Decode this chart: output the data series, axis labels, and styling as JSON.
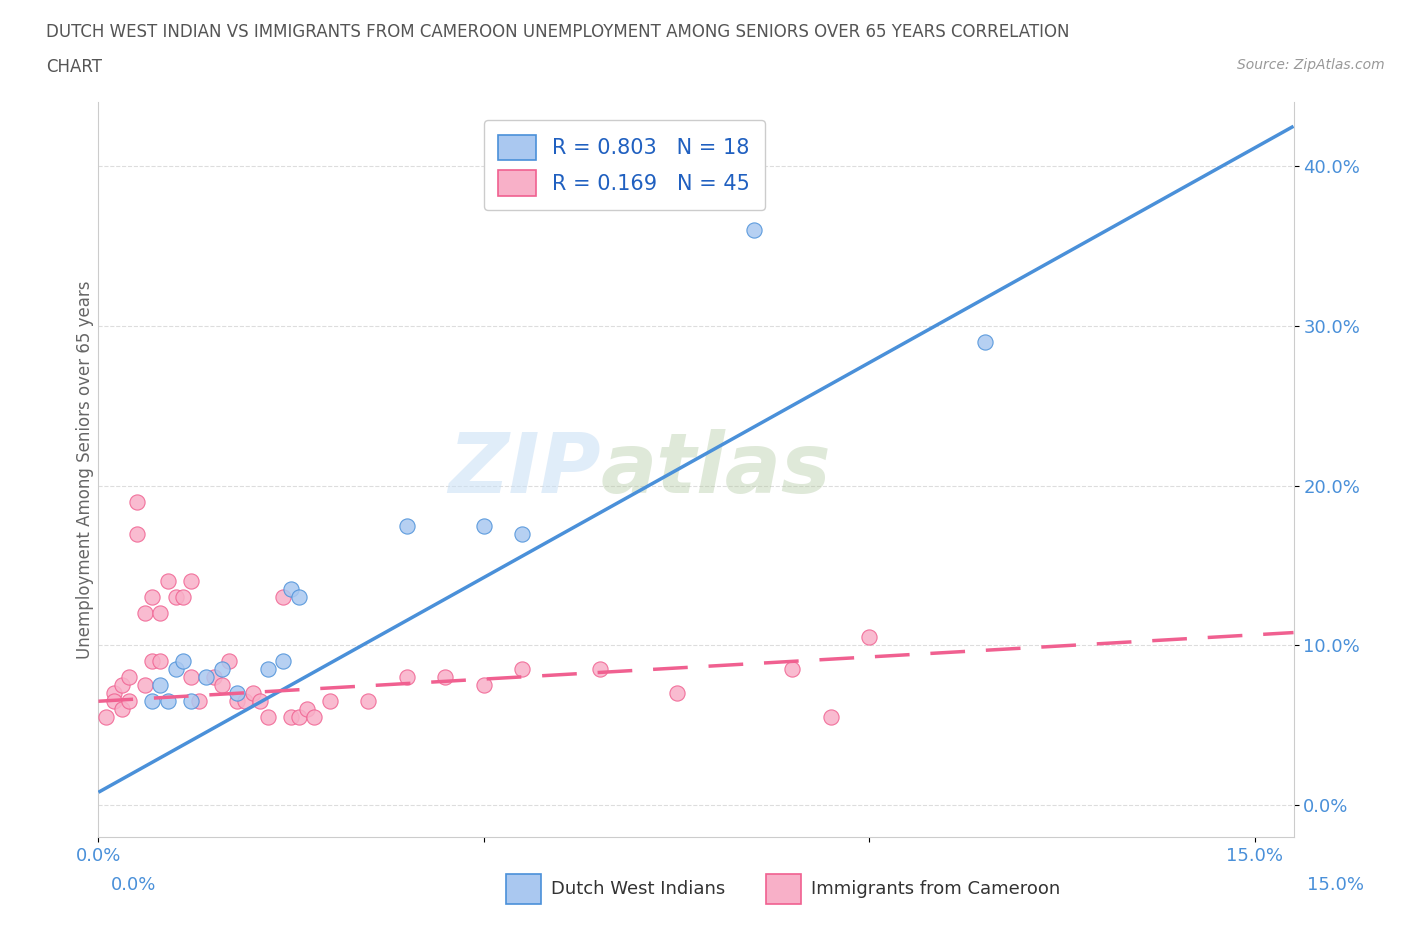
{
  "title_line1": "DUTCH WEST INDIAN VS IMMIGRANTS FROM CAMEROON UNEMPLOYMENT AMONG SENIORS OVER 65 YEARS CORRELATION",
  "title_line2": "CHART",
  "source": "Source: ZipAtlas.com",
  "ylabel": "Unemployment Among Seniors over 65 years",
  "xlim": [
    0.0,
    0.155
  ],
  "ylim": [
    -0.02,
    0.44
  ],
  "yticks": [
    0.0,
    0.1,
    0.2,
    0.3,
    0.4
  ],
  "ytick_labels": [
    "0.0%",
    "10.0%",
    "20.0%",
    "30.0%",
    "40.0%"
  ],
  "xticks": [
    0.0,
    0.05,
    0.1,
    0.15
  ],
  "xtick_labels": [
    "0.0%",
    "",
    "",
    "15.0%"
  ],
  "watermark_zip": "ZIP",
  "watermark_atlas": "atlas",
  "blue_color": "#aac8f0",
  "pink_color": "#f8b0c8",
  "blue_line_color": "#4a90d9",
  "pink_line_color": "#f06090",
  "blue_scatter": [
    [
      0.007,
      0.065
    ],
    [
      0.008,
      0.075
    ],
    [
      0.009,
      0.065
    ],
    [
      0.01,
      0.085
    ],
    [
      0.011,
      0.09
    ],
    [
      0.012,
      0.065
    ],
    [
      0.014,
      0.08
    ],
    [
      0.016,
      0.085
    ],
    [
      0.018,
      0.07
    ],
    [
      0.022,
      0.085
    ],
    [
      0.024,
      0.09
    ],
    [
      0.025,
      0.135
    ],
    [
      0.026,
      0.13
    ],
    [
      0.04,
      0.175
    ],
    [
      0.05,
      0.175
    ],
    [
      0.055,
      0.17
    ],
    [
      0.085,
      0.36
    ],
    [
      0.115,
      0.29
    ]
  ],
  "pink_scatter": [
    [
      0.001,
      0.055
    ],
    [
      0.002,
      0.07
    ],
    [
      0.002,
      0.065
    ],
    [
      0.003,
      0.06
    ],
    [
      0.003,
      0.075
    ],
    [
      0.004,
      0.065
    ],
    [
      0.004,
      0.08
    ],
    [
      0.005,
      0.19
    ],
    [
      0.005,
      0.17
    ],
    [
      0.006,
      0.075
    ],
    [
      0.006,
      0.12
    ],
    [
      0.007,
      0.09
    ],
    [
      0.007,
      0.13
    ],
    [
      0.008,
      0.09
    ],
    [
      0.008,
      0.12
    ],
    [
      0.009,
      0.14
    ],
    [
      0.01,
      0.13
    ],
    [
      0.011,
      0.13
    ],
    [
      0.012,
      0.14
    ],
    [
      0.012,
      0.08
    ],
    [
      0.013,
      0.065
    ],
    [
      0.015,
      0.08
    ],
    [
      0.016,
      0.075
    ],
    [
      0.017,
      0.09
    ],
    [
      0.018,
      0.065
    ],
    [
      0.019,
      0.065
    ],
    [
      0.02,
      0.07
    ],
    [
      0.021,
      0.065
    ],
    [
      0.022,
      0.055
    ],
    [
      0.024,
      0.13
    ],
    [
      0.025,
      0.055
    ],
    [
      0.026,
      0.055
    ],
    [
      0.027,
      0.06
    ],
    [
      0.028,
      0.055
    ],
    [
      0.03,
      0.065
    ],
    [
      0.035,
      0.065
    ],
    [
      0.04,
      0.08
    ],
    [
      0.045,
      0.08
    ],
    [
      0.05,
      0.075
    ],
    [
      0.055,
      0.085
    ],
    [
      0.065,
      0.085
    ],
    [
      0.075,
      0.07
    ],
    [
      0.09,
      0.085
    ],
    [
      0.095,
      0.055
    ],
    [
      0.1,
      0.105
    ]
  ],
  "blue_line_x": [
    0.0,
    0.155
  ],
  "blue_line_y": [
    0.008,
    0.425
  ],
  "pink_line_x": [
    0.0,
    0.155
  ],
  "pink_line_y": [
    0.065,
    0.108
  ],
  "background_color": "#ffffff",
  "grid_color": "#dddddd",
  "legend_label1": "R = 0.803   N = 18",
  "legend_label2": "R = 0.169   N = 45",
  "legend_text_color": "#2060c0",
  "bottom_label1": "Dutch West Indians",
  "bottom_label2": "Immigrants from Cameroon",
  "bottom_color1": "#4a90d9",
  "bottom_color2": "#f06090"
}
